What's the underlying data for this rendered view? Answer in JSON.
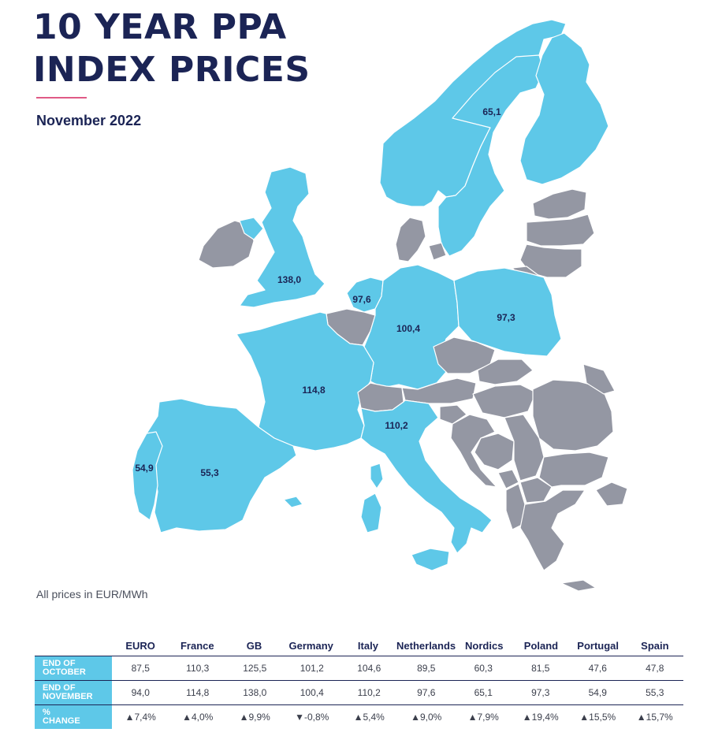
{
  "title_line1": "10 YEAR PPA",
  "title_line2": "INDEX PRICES",
  "subtitle": "November 2022",
  "unit_note": "All prices in EUR/MWh",
  "colors": {
    "priced": "#5ec8e8",
    "unpriced": "#9497a3",
    "title": "#1b2455",
    "accent": "#e05a86"
  },
  "map_labels": {
    "nordics": "65,1",
    "gb": "138,0",
    "netherlands": "97,6",
    "germany": "100,4",
    "poland": "97,3",
    "france": "114,8",
    "italy": "110,2",
    "portugal": "54,9",
    "spain": "55,3"
  },
  "table": {
    "columns": [
      "EURO",
      "France",
      "GB",
      "Germany",
      "Italy",
      "Netherlands",
      "Nordics",
      "Poland",
      "Portugal",
      "Spain"
    ],
    "rows": [
      {
        "label": "END OF\nOCTOBER",
        "values": [
          "87,5",
          "110,3",
          "125,5",
          "101,2",
          "104,6",
          "89,5",
          "60,3",
          "81,5",
          "47,6",
          "47,8"
        ]
      },
      {
        "label": "END OF\nNOVEMBER",
        "values": [
          "94,0",
          "114,8",
          "138,0",
          "100,4",
          "110,2",
          "97,6",
          "65,1",
          "97,3",
          "54,9",
          "55,3"
        ]
      },
      {
        "label": "%\nCHANGE",
        "values": [
          "▲7,4%",
          "▲4,0%",
          "▲9,9%",
          "▼-0,8%",
          "▲5,4%",
          "▲9,0%",
          "▲7,9%",
          "▲19,4%",
          "▲15,5%",
          "▲15,7%"
        ]
      }
    ]
  }
}
